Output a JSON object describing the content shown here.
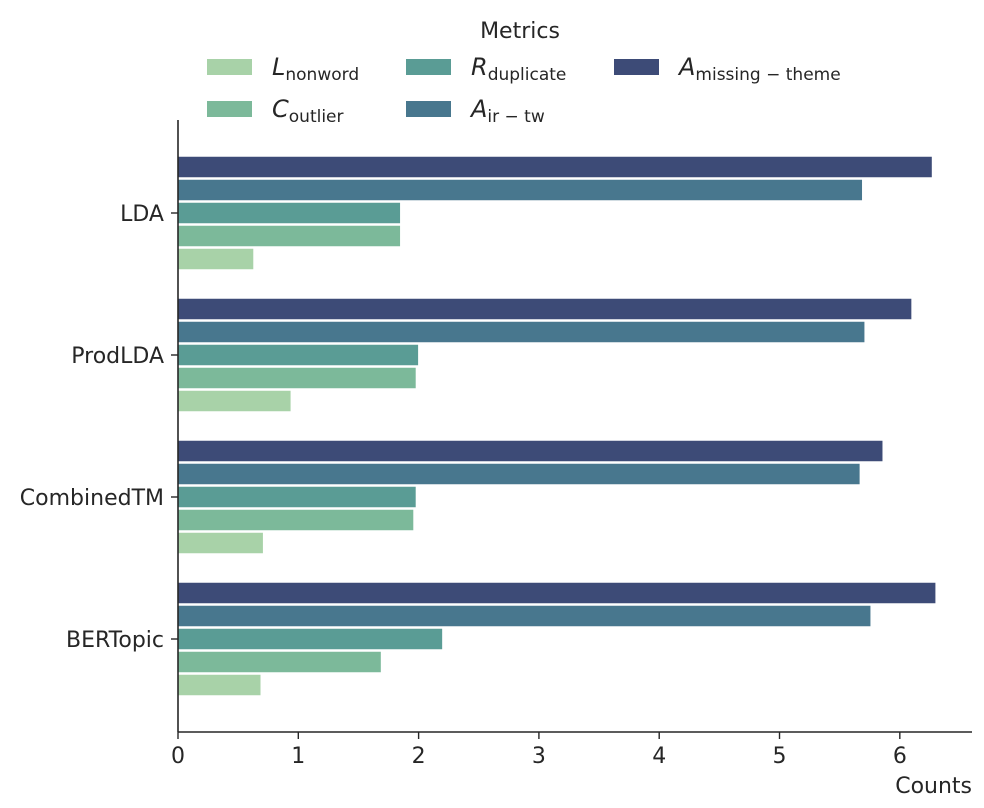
{
  "chart_data": {
    "type": "bar",
    "orientation": "horizontal",
    "title": "",
    "xlabel": "Counts",
    "ylabel": "",
    "xlim": [
      0,
      6.6
    ],
    "xticks": [
      0,
      1,
      2,
      3,
      4,
      5,
      6
    ],
    "categories": [
      "LDA",
      "ProdLDA",
      "CombinedTM",
      "BERTopic"
    ],
    "legend": {
      "title": "Metrics",
      "placement": "top-center",
      "columns": 3
    },
    "grid": false,
    "series": [
      {
        "name": "L_nonword",
        "base": "L",
        "sub": "nonword",
        "color": "#a8d2a8",
        "values": [
          0.63,
          0.94,
          0.71,
          0.69
        ]
      },
      {
        "name": "C_outlier",
        "base": "C",
        "sub": "outlier",
        "color": "#7cb99a",
        "values": [
          1.85,
          1.98,
          1.96,
          1.69
        ]
      },
      {
        "name": "R_duplicate",
        "base": "R",
        "sub": "duplicate",
        "color": "#5a9c95",
        "values": [
          1.85,
          2.0,
          1.98,
          2.2
        ]
      },
      {
        "name": "A_ir-tw",
        "base": "A",
        "sub": "ir − tw",
        "color": "#48778e",
        "values": [
          5.69,
          5.71,
          5.67,
          5.76
        ]
      },
      {
        "name": "A_missing-theme",
        "base": "A",
        "sub": "missing − theme",
        "color": "#3d4b77",
        "values": [
          6.27,
          6.1,
          5.86,
          6.3
        ]
      }
    ]
  }
}
